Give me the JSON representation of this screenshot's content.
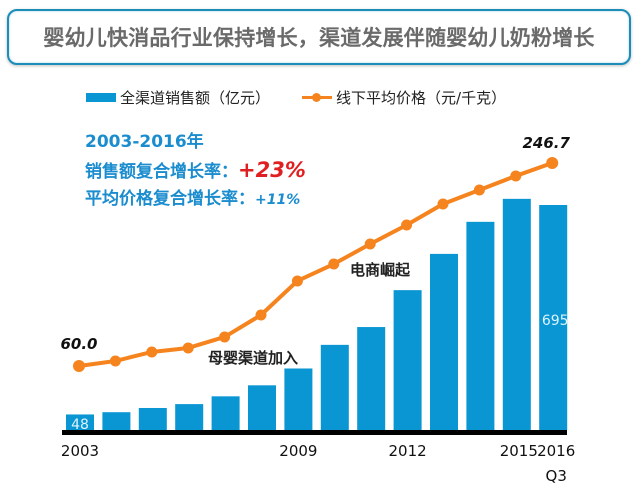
{
  "title": "婴幼儿快消品行业保持增长，渠道发展伴随婴幼儿奶粉增长",
  "legend": {
    "bar_label": "全渠道销售额（亿元）",
    "line_label": "线下平均价格（元/千克）"
  },
  "stats": {
    "period": "2003-2016年",
    "sales_cagr_label": "销售额复合增长率：",
    "sales_cagr_value": "+23%",
    "price_cagr_label": "平均价格复合增长率：",
    "price_cagr_value": "+11%"
  },
  "colors": {
    "bar": "#0a96d3",
    "line": "#f5841f",
    "stats_text": "#1b8dcf",
    "highlight": "#e02020",
    "title_border": "#1b8db8"
  },
  "chart_data": {
    "type": "bar",
    "title": "婴幼儿快消品行业保持增长，渠道发展伴随婴幼儿奶粉增长",
    "xlabel": "",
    "ylabel": "",
    "categories": [
      "2003",
      "2004",
      "2005",
      "2006",
      "2007",
      "2008",
      "2009",
      "2010",
      "2011",
      "2012",
      "2013",
      "2014",
      "2015",
      "2016 Q3"
    ],
    "tick_labels": [
      {
        "index": 0,
        "text": "2003"
      },
      {
        "index": 6,
        "text": "2009"
      },
      {
        "index": 9,
        "text": "2012"
      },
      {
        "index": 12,
        "text": "2015"
      },
      {
        "index": 13,
        "text": "2016",
        "sub": "Q3"
      }
    ],
    "series": [
      {
        "name": "全渠道销售额（亿元）",
        "type": "bar",
        "values": [
          48,
          55,
          68,
          80,
          104,
          138,
          190,
          263,
          318,
          432,
          544,
          643,
          714,
          695
        ],
        "labels": [
          {
            "index": 0,
            "text": "48"
          },
          {
            "index": 13,
            "text": "695"
          }
        ]
      },
      {
        "name": "线下平均价格（元/千克）",
        "type": "line",
        "values": [
          60.0,
          64.6,
          72.9,
          76.6,
          86.7,
          106.9,
          138.2,
          153.8,
          172.2,
          189.7,
          209.0,
          221.9,
          234.8,
          246.7
        ],
        "labels": [
          {
            "index": 0,
            "text": "60.0"
          },
          {
            "index": 13,
            "text": "246.7"
          }
        ]
      }
    ],
    "annotations": [
      {
        "index": 6,
        "text": "母婴渠道加入"
      },
      {
        "index": 9,
        "text": "电商崛起"
      }
    ],
    "bar_ylim": [
      0,
      720
    ],
    "line_ylim": [
      0,
      300
    ],
    "grid": false,
    "legend_position": "top"
  }
}
